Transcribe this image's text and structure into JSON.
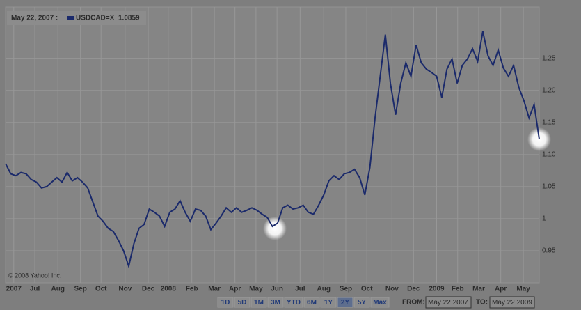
{
  "chart_data": {
    "type": "line",
    "header_date": "May 22, 2007 :",
    "hover_value": "1.0859",
    "copyright": "© 2008 Yahoo! Inc.",
    "series": [
      {
        "name": "USDCAD=X",
        "color": "#1b2a6b",
        "values": [
          1.0859,
          1.07,
          1.067,
          1.072,
          1.07,
          1.061,
          1.057,
          1.048,
          1.05,
          1.057,
          1.064,
          1.057,
          1.072,
          1.059,
          1.064,
          1.057,
          1.048,
          1.026,
          1.004,
          0.996,
          0.985,
          0.98,
          0.966,
          0.95,
          0.926,
          0.961,
          0.985,
          0.991,
          1.015,
          1.01,
          1.004,
          0.988,
          1.01,
          1.015,
          1.028,
          1.01,
          0.996,
          1.015,
          1.013,
          1.004,
          0.983,
          0.993,
          1.004,
          1.017,
          1.01,
          1.017,
          1.01,
          1.013,
          1.017,
          1.013,
          1.007,
          1.002,
          0.988,
          0.993,
          1.017,
          1.021,
          1.015,
          1.017,
          1.021,
          1.01,
          1.007,
          1.021,
          1.037,
          1.059,
          1.067,
          1.061,
          1.07,
          1.072,
          1.077,
          1.064,
          1.037,
          1.08,
          1.157,
          1.222,
          1.287,
          1.211,
          1.162,
          1.211,
          1.243,
          1.222,
          1.271,
          1.243,
          1.233,
          1.228,
          1.222,
          1.189,
          1.233,
          1.249,
          1.211,
          1.239,
          1.249,
          1.265,
          1.245,
          1.292,
          1.254,
          1.239,
          1.263,
          1.235,
          1.222,
          1.239,
          1.205,
          1.184,
          1.157,
          1.178,
          1.124
        ]
      }
    ],
    "xlim": [
      0,
      104
    ],
    "xticks": [
      {
        "value": 1.6,
        "label": "2007"
      },
      {
        "value": 5.7,
        "label": "Jul"
      },
      {
        "value": 10.2,
        "label": "Aug"
      },
      {
        "value": 14.6,
        "label": "Sep"
      },
      {
        "value": 18.6,
        "label": "Oct"
      },
      {
        "value": 23.3,
        "label": "Nov"
      },
      {
        "value": 27.8,
        "label": "Dec"
      },
      {
        "value": 31.7,
        "label": "2008"
      },
      {
        "value": 36.3,
        "label": "Feb"
      },
      {
        "value": 40.7,
        "label": "Mar"
      },
      {
        "value": 44.7,
        "label": "Apr"
      },
      {
        "value": 48.8,
        "label": "May"
      },
      {
        "value": 52.9,
        "label": "Jun"
      },
      {
        "value": 57.4,
        "label": "Jul"
      },
      {
        "value": 62,
        "label": "Aug"
      },
      {
        "value": 66.3,
        "label": "Sep"
      },
      {
        "value": 70.4,
        "label": "Oct"
      },
      {
        "value": 75.3,
        "label": "Nov"
      },
      {
        "value": 79.5,
        "label": "Dec"
      },
      {
        "value": 84,
        "label": "2009"
      },
      {
        "value": 88.1,
        "label": "Feb"
      },
      {
        "value": 92.2,
        "label": "Mar"
      },
      {
        "value": 96.5,
        "label": "Apr"
      },
      {
        "value": 100.9,
        "label": "May"
      }
    ],
    "ylim": [
      0.9,
      1.33
    ],
    "yticks": [
      0.95,
      1,
      1.05,
      {
        "value": 1.1,
        "label": "1.10"
      },
      1.15,
      {
        "value": 1.2,
        "label": "1.20"
      },
      1.25
    ],
    "grid": true
  },
  "controls": {
    "range_buttons": [
      "1D",
      "5D",
      "1M",
      "3M",
      "YTD",
      "6M",
      "1Y",
      "2Y",
      "5Y",
      "Max"
    ],
    "active_button": 7,
    "from_label": "FROM:",
    "from_value": "May 22 2007",
    "to_label": "TO:",
    "to_value": "May 22 2009"
  }
}
